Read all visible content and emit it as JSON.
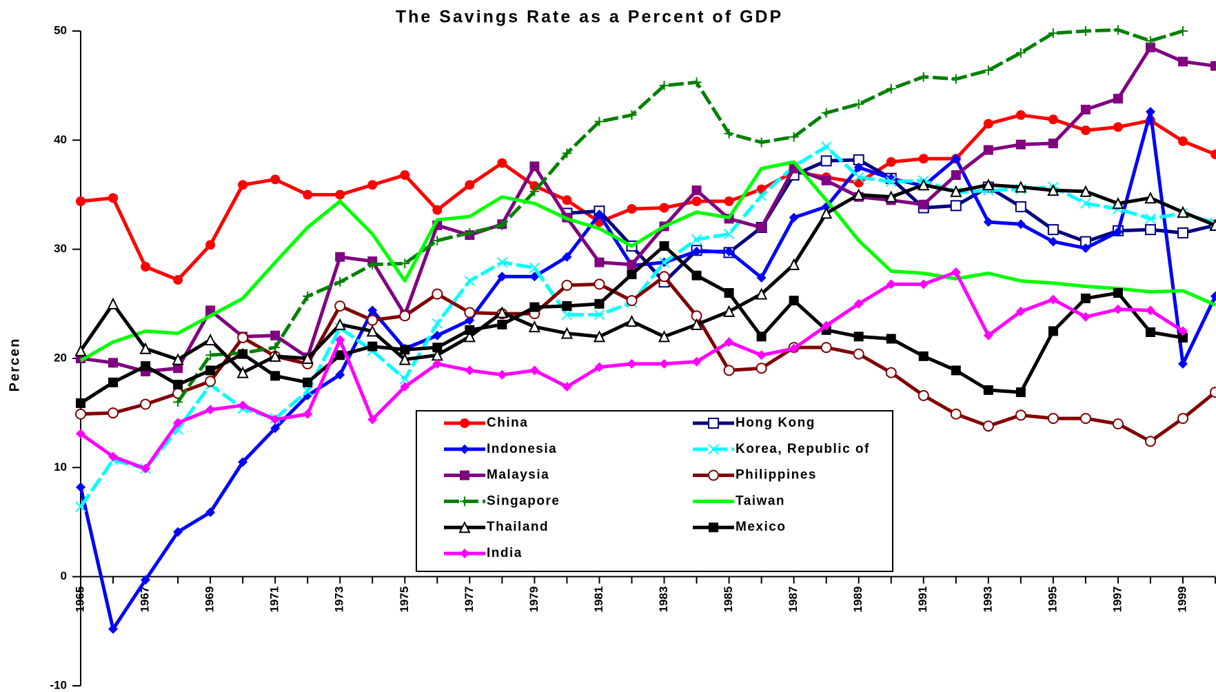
{
  "chart_data": {
    "type": "line",
    "title": "The Savings Rate as a Percent of GDP",
    "ylabel": "Percen",
    "x": [
      1965,
      1966,
      1967,
      1968,
      1969,
      1970,
      1971,
      1972,
      1973,
      1974,
      1975,
      1976,
      1977,
      1978,
      1979,
      1980,
      1981,
      1982,
      1983,
      1984,
      1985,
      1986,
      1987,
      1988,
      1989,
      1990,
      1991,
      1992,
      1993,
      1994,
      1995,
      1996,
      1997,
      1998,
      1999,
      2000
    ],
    "xlim": [
      1965,
      2000
    ],
    "xticks": [
      1965,
      1967,
      1969,
      1971,
      1973,
      1975,
      1977,
      1979,
      1981,
      1983,
      1985,
      1987,
      1989,
      1991,
      1993,
      1995,
      1997,
      1999
    ],
    "xminor_ticks": [
      1966,
      1968,
      1970,
      1972,
      1974,
      1976,
      1978,
      1980,
      1982,
      1984,
      1986,
      1988,
      1990,
      1992,
      1994,
      1996,
      1998,
      2000
    ],
    "ylim": [
      -10,
      50
    ],
    "yticks": [
      -10,
      0,
      10,
      20,
      30,
      40,
      50
    ],
    "series": [
      {
        "name": "China",
        "color": "#ff0000",
        "marker": "circle",
        "values": [
          34.4,
          34.7,
          28.4,
          27.2,
          30.4,
          35.9,
          36.4,
          35.0,
          35.0,
          35.9,
          36.8,
          33.6,
          35.9,
          37.9,
          35.8,
          34.5,
          32.5,
          33.7,
          33.8,
          34.4,
          34.4,
          35.5,
          37.1,
          36.6,
          36.1,
          38.0,
          38.3,
          38.3,
          41.5,
          42.3,
          41.9,
          40.9,
          41.2,
          41.8,
          39.9,
          38.7
        ]
      },
      {
        "name": "Hong Kong",
        "color": "#000080",
        "marker": "open-square",
        "values": [
          null,
          null,
          null,
          null,
          null,
          null,
          null,
          null,
          null,
          null,
          null,
          null,
          null,
          null,
          null,
          33.3,
          33.5,
          30.3,
          27.0,
          29.9,
          29.7,
          32.0,
          36.8,
          38.1,
          38.2,
          36.5,
          33.8,
          34.0,
          35.7,
          33.9,
          31.8,
          30.7,
          31.7,
          31.8,
          31.5,
          32.2
        ]
      },
      {
        "name": "Indonesia",
        "color": "#0000ff",
        "marker": "diamond",
        "values": [
          8.2,
          -4.8,
          -0.3,
          4.1,
          5.9,
          10.5,
          13.6,
          16.6,
          18.5,
          24.4,
          20.9,
          22.1,
          23.5,
          27.5,
          27.5,
          29.3,
          33.2,
          28.5,
          28.8,
          29.8,
          29.8,
          27.4,
          32.9,
          33.9,
          37.5,
          36.5,
          35.8,
          38.3,
          32.5,
          32.3,
          30.7,
          30.1,
          31.6,
          42.6,
          19.5,
          25.7
        ]
      },
      {
        "name": "Korea, Republic of",
        "color": "#00ffff",
        "marker": "cross",
        "dash": true,
        "values": [
          6.4,
          10.7,
          9.9,
          13.5,
          17.6,
          15.4,
          14.5,
          17.0,
          22.8,
          20.7,
          18.1,
          23.2,
          27.1,
          28.8,
          28.3,
          24.0,
          24.0,
          25.1,
          28.8,
          30.9,
          31.4,
          34.9,
          37.6,
          39.4,
          36.6,
          36.2,
          36.3,
          35.2,
          35.4,
          35.5,
          35.7,
          34.2,
          33.7,
          32.8,
          33.3,
          32.4
        ]
      },
      {
        "name": "Malaysia",
        "color": "#800080",
        "marker": "square",
        "values": [
          20.0,
          19.6,
          18.8,
          19.1,
          24.4,
          22.0,
          22.1,
          20.1,
          29.3,
          28.9,
          24.0,
          32.2,
          31.3,
          32.3,
          37.6,
          32.9,
          28.8,
          28.6,
          32.1,
          35.4,
          32.8,
          32.0,
          37.4,
          36.3,
          34.8,
          34.5,
          34.1,
          36.8,
          39.1,
          39.6,
          39.7,
          42.8,
          43.8,
          48.5,
          47.2,
          46.8
        ]
      },
      {
        "name": "Philippines",
        "color": "#800000",
        "marker": "open-circle",
        "values": [
          14.9,
          15.0,
          15.8,
          16.8,
          17.9,
          21.9,
          20.2,
          19.5,
          24.8,
          23.5,
          23.9,
          25.9,
          24.2,
          24.1,
          24.1,
          26.7,
          26.8,
          25.3,
          27.5,
          23.9,
          18.9,
          19.1,
          21.0,
          21.0,
          20.4,
          18.7,
          16.6,
          14.9,
          13.8,
          14.8,
          14.5,
          14.5,
          14.0,
          12.4,
          14.5,
          16.9
        ]
      },
      {
        "name": "Singapore",
        "color": "#008000",
        "marker": "plus",
        "dash": true,
        "values": [
          null,
          null,
          null,
          16.0,
          20.3,
          20.5,
          21.0,
          25.7,
          27.0,
          28.6,
          28.7,
          30.8,
          31.5,
          32.2,
          35.3,
          38.8,
          41.7,
          42.3,
          45.0,
          45.3,
          40.6,
          39.8,
          40.3,
          42.5,
          43.3,
          44.7,
          45.8,
          45.6,
          46.4,
          48.0,
          49.8,
          50.0,
          50.1,
          49.1,
          50.0,
          null
        ]
      },
      {
        "name": "Taiwan",
        "color": "#00ff00",
        "marker": "none",
        "values": [
          19.8,
          21.5,
          22.5,
          22.3,
          23.9,
          25.5,
          28.8,
          32.0,
          34.4,
          31.4,
          27.1,
          32.7,
          33.0,
          34.8,
          34.2,
          32.8,
          31.9,
          30.3,
          32.1,
          33.4,
          32.9,
          37.4,
          38.0,
          34.5,
          30.8,
          28.0,
          27.8,
          27.3,
          27.8,
          27.1,
          26.9,
          26.6,
          26.4,
          26.1,
          26.2,
          24.9
        ]
      },
      {
        "name": "Thailand",
        "color": "#000000",
        "marker": "open-triangle",
        "values": [
          20.7,
          25.0,
          20.9,
          19.9,
          21.7,
          18.7,
          20.2,
          20.0,
          23.1,
          22.5,
          19.9,
          20.3,
          22.0,
          24.2,
          22.9,
          22.3,
          22.0,
          23.4,
          22.0,
          23.1,
          24.3,
          25.9,
          28.6,
          33.3,
          35.0,
          34.8,
          35.9,
          35.3,
          35.9,
          35.7,
          35.4,
          35.3,
          34.2,
          34.7,
          33.4,
          32.2
        ]
      },
      {
        "name": "Mexico",
        "color": "#000000",
        "marker": "square",
        "values": [
          15.9,
          17.8,
          19.3,
          17.6,
          18.9,
          20.4,
          18.4,
          17.8,
          20.3,
          21.1,
          20.8,
          21.0,
          22.6,
          23.1,
          24.7,
          24.8,
          25.0,
          27.7,
          30.3,
          27.6,
          26.0,
          22.0,
          25.3,
          22.6,
          22.0,
          21.8,
          20.2,
          18.9,
          17.1,
          16.9,
          22.5,
          25.5,
          26.0,
          22.4,
          21.9,
          null
        ]
      },
      {
        "name": "India",
        "color": "#ff00ff",
        "marker": "diamond",
        "values": [
          13.1,
          11.0,
          9.9,
          14.1,
          15.3,
          15.7,
          14.4,
          14.9,
          21.7,
          14.4,
          17.4,
          19.5,
          18.9,
          18.5,
          18.9,
          17.4,
          19.2,
          19.5,
          19.5,
          19.7,
          21.5,
          20.3,
          20.9,
          23.0,
          25.0,
          26.8,
          26.8,
          27.9,
          22.1,
          24.3,
          25.4,
          23.8,
          24.5,
          24.4,
          22.5,
          null
        ]
      }
    ]
  }
}
